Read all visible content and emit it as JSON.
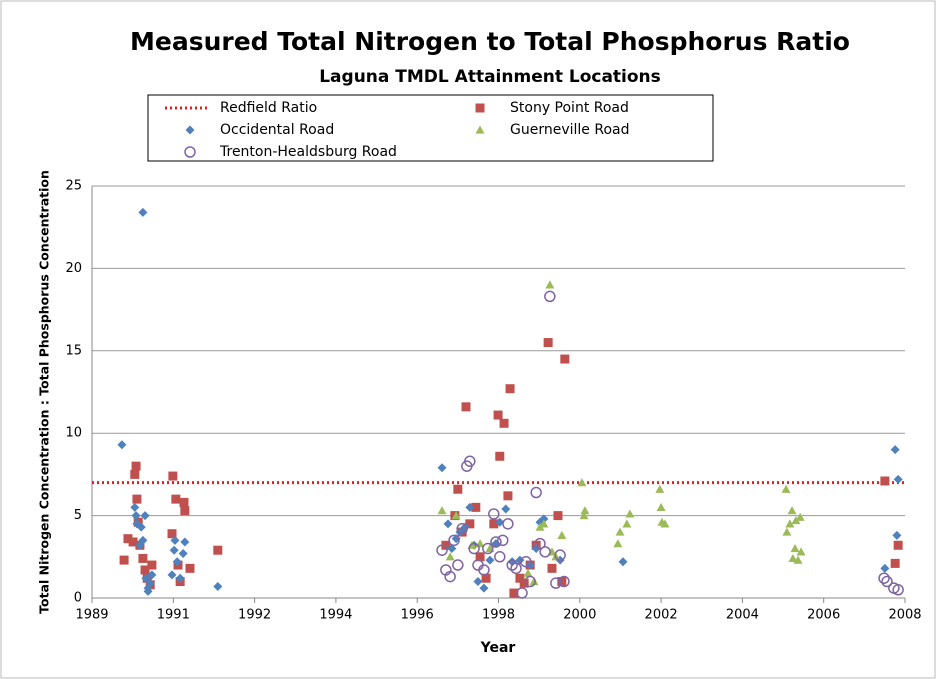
{
  "chart_data": {
    "type": "scatter",
    "title": "Measured Total Nitrogen to Total Phosphorus Ratio",
    "subtitle": "Laguna TMDL Attainment Locations",
    "x_label": "Year",
    "y_label": "Total Nitrogen Concentration : Total Phosphorus Concentration",
    "xlim": [
      1989,
      2008
    ],
    "xticks": [
      1989,
      {
        "value": 1990.9,
        "label": "1991"
      },
      {
        "value": 1992.8,
        "label": "1992"
      },
      {
        "value": 1994.7,
        "label": "1994"
      },
      {
        "value": 1996.6,
        "label": "1996"
      },
      {
        "value": 1998.5,
        "label": "1998"
      },
      {
        "value": 2000.4,
        "label": "2000"
      },
      {
        "value": 2002.3,
        "label": "2002"
      },
      {
        "value": 2004.2,
        "label": "2004"
      },
      {
        "value": 2006.1,
        "label": "2006"
      },
      2008
    ],
    "ylim": [
      0,
      25
    ],
    "yticks": [
      0,
      5,
      10,
      15,
      20,
      25
    ],
    "grid": true,
    "reference_lines": [
      {
        "name": "Redfield Ratio",
        "value": 7,
        "color": "#e02020",
        "style": "dotted"
      }
    ],
    "series": [
      {
        "name": "Stony Point Road",
        "color": "#c0504d",
        "marker": "square",
        "x": [
          1989.75,
          1989.84,
          1989.96,
          1990.0,
          1990.03,
          1990.05,
          1990.08,
          1990.12,
          1990.19,
          1990.24,
          1990.29,
          1990.36,
          1990.4,
          1990.87,
          1990.89,
          1990.96,
          1991.01,
          1991.06,
          1991.15,
          1991.17,
          1991.29,
          1991.94,
          1997.27,
          1997.48,
          1997.55,
          1997.65,
          1997.74,
          1997.83,
          1997.97,
          1998.07,
          1998.21,
          1998.39,
          1998.49,
          1998.53,
          1998.63,
          1998.72,
          1998.77,
          1998.86,
          1999.0,
          1999.1,
          1999.24,
          1999.38,
          1999.66,
          1999.75,
          1999.89,
          1999.98,
          2000.05,
          2007.53,
          2007.77,
          2007.84
        ],
        "values": [
          2.3,
          3.6,
          3.4,
          7.5,
          8.0,
          6.0,
          4.6,
          3.2,
          2.4,
          1.7,
          1.2,
          0.8,
          2.0,
          3.9,
          7.4,
          6.0,
          2.0,
          1.0,
          5.8,
          5.3,
          1.8,
          2.9,
          3.2,
          5.0,
          6.6,
          4.0,
          11.6,
          4.5,
          5.5,
          2.5,
          1.2,
          4.5,
          11.1,
          8.6,
          10.6,
          6.2,
          12.7,
          0.3,
          1.2,
          0.9,
          2.0,
          3.2,
          15.5,
          1.8,
          5.0,
          1.0,
          14.5,
          7.1,
          2.1,
          3.2
        ]
      },
      {
        "name": "Occidental Road",
        "color": "#4f81bd",
        "marker": "diamond",
        "x": [
          1989.7,
          1990.19,
          1990.0,
          1990.03,
          1990.05,
          1990.12,
          1990.15,
          1990.19,
          1990.24,
          1990.26,
          1990.31,
          1990.36,
          1990.4,
          1990.31,
          1990.87,
          1990.92,
          1990.94,
          1990.99,
          1991.06,
          1991.13,
          1991.17,
          1991.94,
          1997.18,
          1997.32,
          1997.41,
          1997.51,
          1997.6,
          1997.72,
          1997.83,
          1997.93,
          1998.02,
          1998.16,
          1998.3,
          1998.44,
          1998.53,
          1998.67,
          1998.82,
          1999.0,
          1999.24,
          1999.38,
          1999.47,
          1999.56,
          1999.94,
          2001.41,
          2007.53,
          2007.77,
          2007.81,
          2007.84
        ],
        "values": [
          9.3,
          23.4,
          5.5,
          5.0,
          4.5,
          3.2,
          4.3,
          3.5,
          5.0,
          1.2,
          0.6,
          0.9,
          1.4,
          0.4,
          1.4,
          2.9,
          3.5,
          2.2,
          1.2,
          2.7,
          3.4,
          0.7,
          7.9,
          4.5,
          3.0,
          3.6,
          4.0,
          4.3,
          5.5,
          3.2,
          1.0,
          0.6,
          2.3,
          3.3,
          4.6,
          5.4,
          2.2,
          2.3,
          2.0,
          3.0,
          4.6,
          4.8,
          2.3,
          2.2,
          1.8,
          9.0,
          3.8,
          7.2
        ]
      },
      {
        "name": "Guerneville Road",
        "color": "#9bbb59",
        "marker": "triangle",
        "x": [
          1997.18,
          1997.37,
          1997.51,
          1997.88,
          1998.07,
          1998.3,
          1999.19,
          1999.33,
          1999.47,
          1999.56,
          1999.7,
          1999.75,
          1999.84,
          1999.98,
          2000.45,
          2000.5,
          2000.52,
          2001.29,
          2001.34,
          2001.5,
          2001.57,
          2002.27,
          2002.3,
          2002.32,
          2002.39,
          2005.22,
          2005.24,
          2005.31,
          2005.36,
          2005.38,
          2005.43,
          2005.45,
          2005.5,
          2005.55,
          2005.57
        ],
        "values": [
          5.3,
          2.5,
          5.0,
          3.2,
          3.3,
          3.0,
          1.5,
          1.0,
          4.3,
          4.5,
          19.0,
          2.8,
          2.5,
          3.8,
          7.0,
          5.0,
          5.3,
          3.3,
          4.0,
          4.5,
          5.1,
          6.6,
          5.5,
          4.6,
          4.5,
          6.6,
          4.0,
          4.5,
          5.3,
          2.4,
          3.0,
          4.7,
          2.3,
          4.9,
          2.8
        ]
      },
      {
        "name": "Trenton-Healdsburg Road",
        "color": "#8064a2",
        "marker": "circle",
        "x": [
          1997.18,
          1997.27,
          1997.37,
          1997.46,
          1997.55,
          1997.65,
          1997.76,
          1997.83,
          1997.93,
          1998.02,
          1998.16,
          1998.25,
          1998.39,
          1998.44,
          1998.53,
          1998.6,
          1998.72,
          1998.82,
          1998.91,
          1999.05,
          1999.14,
          1999.24,
          1999.38,
          1999.47,
          1999.59,
          1999.7,
          1999.84,
          1999.94,
          2000.03,
          2007.51,
          2007.58,
          2007.74,
          2007.84
        ],
        "values": [
          2.9,
          1.7,
          1.3,
          3.5,
          2.0,
          4.2,
          8.0,
          8.3,
          3.0,
          2.0,
          1.7,
          3.0,
          5.1,
          3.4,
          2.5,
          3.5,
          4.5,
          2.0,
          1.8,
          0.3,
          2.2,
          1.0,
          6.4,
          3.3,
          2.8,
          18.3,
          0.9,
          2.6,
          1.0,
          1.2,
          1.0,
          0.6,
          0.5
        ]
      }
    ]
  }
}
